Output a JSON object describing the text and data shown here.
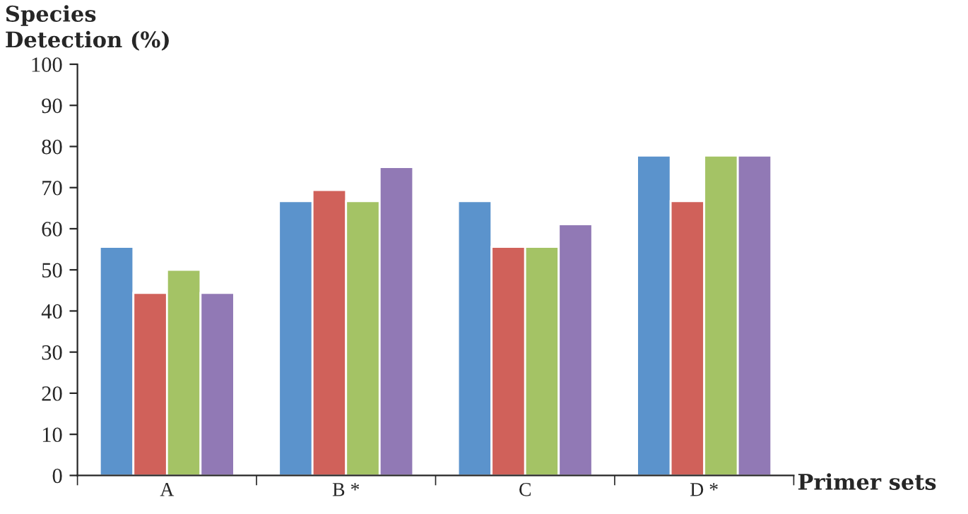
{
  "chart_data": {
    "type": "bar",
    "xlabel": "Primer sets",
    "ylabel": "Species\nDetection (%)",
    "categories": [
      "A",
      "B *",
      "C",
      "D *"
    ],
    "series": [
      {
        "color": "#5b93cc",
        "values": [
          55.6,
          66.7,
          66.7,
          77.8
        ]
      },
      {
        "color": "#d0615a",
        "values": [
          44.4,
          69.4,
          55.6,
          66.7
        ]
      },
      {
        "color": "#a4c365",
        "values": [
          50,
          66.7,
          55.6,
          77.8
        ]
      },
      {
        "color": "#9179b5",
        "values": [
          44.4,
          75,
          61.1,
          77.8
        ]
      }
    ],
    "ylim": [
      0,
      100
    ],
    "yticks": [
      0,
      10,
      20,
      30,
      40,
      50,
      60,
      70,
      80,
      90,
      100
    ],
    "grid": false
  }
}
